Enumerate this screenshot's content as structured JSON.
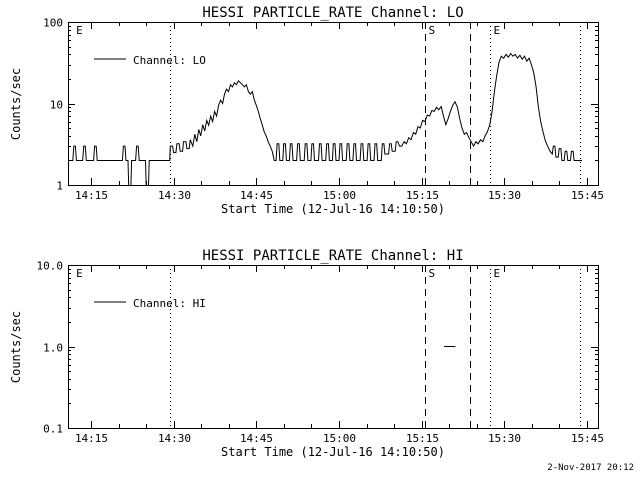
{
  "page": {
    "background": "#ffffff",
    "foreground": "#000000",
    "timestamp": "2-Nov-2017 20:12"
  },
  "chart_data": [
    {
      "type": "line",
      "title": "HESSI PARTICLE_RATE Channel: LO",
      "xlabel": "Start Time (12-Jul-16 14:10:50)",
      "ylabel": "Counts/sec",
      "legend": "Channel: LO",
      "legend_position": "top-left",
      "yscale": "log",
      "ylim": [
        1,
        100
      ],
      "yticks": [
        {
          "v": 1,
          "label": "1"
        },
        {
          "v": 10,
          "label": "10"
        },
        {
          "v": 100,
          "label": "100"
        }
      ],
      "x_unit": "decimal_hours",
      "xlim": [
        14.1806,
        15.7833
      ],
      "xticks": [
        {
          "v": 14.25,
          "label": "14:15"
        },
        {
          "v": 14.5,
          "label": "14:30"
        },
        {
          "v": 14.75,
          "label": "14:45"
        },
        {
          "v": 15.0,
          "label": "15:00"
        },
        {
          "v": 15.25,
          "label": "15:15"
        },
        {
          "v": 15.5,
          "label": "15:30"
        },
        {
          "v": 15.75,
          "label": "15:45"
        }
      ],
      "xminor": 0.0833333,
      "grid": false,
      "vlines": [
        {
          "x": 14.49,
          "style": "dotted"
        },
        {
          "x": 15.26,
          "style": "dashed",
          "label": "S"
        },
        {
          "x": 15.395,
          "style": "dashed"
        },
        {
          "x": 15.457,
          "style": "dotted",
          "label": "E"
        },
        {
          "x": 15.729,
          "style": "dotted"
        }
      ],
      "extra_labels": [
        {
          "x": 14.205,
          "text": "E"
        }
      ],
      "points": [
        [
          14.185,
          2
        ],
        [
          14.195,
          2
        ],
        [
          14.198,
          3
        ],
        [
          14.203,
          3
        ],
        [
          14.206,
          2
        ],
        [
          14.225,
          2
        ],
        [
          14.228,
          3
        ],
        [
          14.233,
          3
        ],
        [
          14.236,
          2
        ],
        [
          14.258,
          2
        ],
        [
          14.261,
          3
        ],
        [
          14.266,
          3
        ],
        [
          14.269,
          2
        ],
        [
          14.29,
          2
        ],
        [
          14.31,
          2
        ],
        [
          14.33,
          2
        ],
        [
          14.345,
          2
        ],
        [
          14.348,
          3
        ],
        [
          14.353,
          3
        ],
        [
          14.356,
          2
        ],
        [
          14.362,
          2
        ],
        [
          14.365,
          0.7
        ],
        [
          14.37,
          0.7
        ],
        [
          14.373,
          2
        ],
        [
          14.385,
          2
        ],
        [
          14.388,
          3
        ],
        [
          14.393,
          3
        ],
        [
          14.396,
          2
        ],
        [
          14.415,
          2
        ],
        [
          14.418,
          0.7
        ],
        [
          14.423,
          0.7
        ],
        [
          14.426,
          2
        ],
        [
          14.44,
          2
        ],
        [
          14.47,
          2
        ],
        [
          14.488,
          2
        ],
        [
          14.49,
          3
        ],
        [
          14.497,
          3
        ],
        [
          14.5,
          2.5
        ],
        [
          14.507,
          2.5
        ],
        [
          14.51,
          3.2
        ],
        [
          14.517,
          3.2
        ],
        [
          14.52,
          2.6
        ],
        [
          14.527,
          2.6
        ],
        [
          14.53,
          3.4
        ],
        [
          14.537,
          3.4
        ],
        [
          14.54,
          2.8
        ],
        [
          14.547,
          2.8
        ],
        [
          14.55,
          3.6
        ],
        [
          14.558,
          3.0
        ],
        [
          14.564,
          4.2
        ],
        [
          14.57,
          3.4
        ],
        [
          14.576,
          4.8
        ],
        [
          14.582,
          4.0
        ],
        [
          14.588,
          5.5
        ],
        [
          14.594,
          4.6
        ],
        [
          14.6,
          6.2
        ],
        [
          14.606,
          5.4
        ],
        [
          14.612,
          7.0
        ],
        [
          14.618,
          6.0
        ],
        [
          14.624,
          8.0
        ],
        [
          14.63,
          7.0
        ],
        [
          14.636,
          9.5
        ],
        [
          14.642,
          11
        ],
        [
          14.648,
          10
        ],
        [
          14.654,
          13
        ],
        [
          14.66,
          15
        ],
        [
          14.666,
          14
        ],
        [
          14.672,
          17
        ],
        [
          14.678,
          16
        ],
        [
          14.684,
          18
        ],
        [
          14.69,
          17
        ],
        [
          14.696,
          19
        ],
        [
          14.702,
          18
        ],
        [
          14.708,
          17
        ],
        [
          14.714,
          16
        ],
        [
          14.72,
          17
        ],
        [
          14.726,
          14
        ],
        [
          14.732,
          13
        ],
        [
          14.738,
          14
        ],
        [
          14.744,
          11
        ],
        [
          14.75,
          9.5
        ],
        [
          14.756,
          8
        ],
        [
          14.762,
          6.5
        ],
        [
          14.768,
          5.5
        ],
        [
          14.774,
          4.5
        ],
        [
          14.78,
          4.0
        ],
        [
          14.786,
          3.4
        ],
        [
          14.792,
          3.0
        ],
        [
          14.798,
          2.6
        ],
        [
          14.804,
          2
        ],
        [
          14.81,
          2
        ],
        [
          14.813,
          3.2
        ],
        [
          14.818,
          3.2
        ],
        [
          14.821,
          2
        ],
        [
          14.83,
          2
        ],
        [
          14.833,
          3.2
        ],
        [
          14.838,
          3.2
        ],
        [
          14.841,
          2
        ],
        [
          14.85,
          2
        ],
        [
          14.853,
          3.2
        ],
        [
          14.858,
          3.2
        ],
        [
          14.861,
          2
        ],
        [
          14.872,
          2
        ],
        [
          14.875,
          3.2
        ],
        [
          14.88,
          3.2
        ],
        [
          14.883,
          2
        ],
        [
          14.895,
          2
        ],
        [
          14.898,
          3.2
        ],
        [
          14.903,
          3.2
        ],
        [
          14.906,
          2
        ],
        [
          14.915,
          2
        ],
        [
          14.918,
          3.2
        ],
        [
          14.923,
          3.2
        ],
        [
          14.926,
          2
        ],
        [
          14.938,
          2
        ],
        [
          14.941,
          3.2
        ],
        [
          14.946,
          3.2
        ],
        [
          14.949,
          2
        ],
        [
          14.96,
          2
        ],
        [
          14.963,
          3.2
        ],
        [
          14.968,
          3.2
        ],
        [
          14.971,
          2
        ],
        [
          14.98,
          2
        ],
        [
          14.983,
          3.2
        ],
        [
          14.988,
          3.2
        ],
        [
          14.991,
          2
        ],
        [
          15.0,
          2
        ],
        [
          15.003,
          3.2
        ],
        [
          15.008,
          3.2
        ],
        [
          15.011,
          2
        ],
        [
          15.022,
          2
        ],
        [
          15.025,
          3.2
        ],
        [
          15.03,
          3.2
        ],
        [
          15.033,
          2
        ],
        [
          15.042,
          2
        ],
        [
          15.045,
          3.2
        ],
        [
          15.05,
          3.2
        ],
        [
          15.053,
          2
        ],
        [
          15.064,
          2
        ],
        [
          15.067,
          3.2
        ],
        [
          15.072,
          3.2
        ],
        [
          15.075,
          2
        ],
        [
          15.085,
          2
        ],
        [
          15.088,
          3.2
        ],
        [
          15.093,
          3.2
        ],
        [
          15.096,
          2
        ],
        [
          15.106,
          2
        ],
        [
          15.109,
          3.2
        ],
        [
          15.114,
          3.2
        ],
        [
          15.117,
          2
        ],
        [
          15.128,
          2
        ],
        [
          15.131,
          3.2
        ],
        [
          15.136,
          3.2
        ],
        [
          15.139,
          2.4
        ],
        [
          15.15,
          2.4
        ],
        [
          15.153,
          3.2
        ],
        [
          15.158,
          3.2
        ],
        [
          15.161,
          2.6
        ],
        [
          15.17,
          2.6
        ],
        [
          15.173,
          3.4
        ],
        [
          15.178,
          3.4
        ],
        [
          15.183,
          3.0
        ],
        [
          15.19,
          3.0
        ],
        [
          15.197,
          3.4
        ],
        [
          15.204,
          3.2
        ],
        [
          15.211,
          3.8
        ],
        [
          15.218,
          3.6
        ],
        [
          15.225,
          4.4
        ],
        [
          15.232,
          4.2
        ],
        [
          15.239,
          5.2
        ],
        [
          15.246,
          5.0
        ],
        [
          15.253,
          6.2
        ],
        [
          15.26,
          6.0
        ],
        [
          15.267,
          7.2
        ],
        [
          15.274,
          7.0
        ],
        [
          15.281,
          8.2
        ],
        [
          15.288,
          8.0
        ],
        [
          15.295,
          9.0
        ],
        [
          15.302,
          8.4
        ],
        [
          15.309,
          9.2
        ],
        [
          15.316,
          7.0
        ],
        [
          15.323,
          5.5
        ],
        [
          15.33,
          6.5
        ],
        [
          15.337,
          8.0
        ],
        [
          15.344,
          9.5
        ],
        [
          15.351,
          10.5
        ],
        [
          15.358,
          9.0
        ],
        [
          15.365,
          6.5
        ],
        [
          15.372,
          5.0
        ],
        [
          15.379,
          4.2
        ],
        [
          15.386,
          4.4
        ],
        [
          15.393,
          3.8
        ],
        [
          15.4,
          3.4
        ],
        [
          15.407,
          3.0
        ],
        [
          15.414,
          3.4
        ],
        [
          15.421,
          3.2
        ],
        [
          15.428,
          3.6
        ],
        [
          15.435,
          3.4
        ],
        [
          15.442,
          4.0
        ],
        [
          15.449,
          4.5
        ],
        [
          15.456,
          5.5
        ],
        [
          15.463,
          8.0
        ],
        [
          15.47,
          14
        ],
        [
          15.477,
          22
        ],
        [
          15.484,
          32
        ],
        [
          15.491,
          38
        ],
        [
          15.498,
          36
        ],
        [
          15.505,
          40
        ],
        [
          15.512,
          37
        ],
        [
          15.519,
          41
        ],
        [
          15.526,
          38
        ],
        [
          15.533,
          40
        ],
        [
          15.54,
          36
        ],
        [
          15.547,
          39
        ],
        [
          15.554,
          35
        ],
        [
          15.561,
          38
        ],
        [
          15.568,
          33
        ],
        [
          15.575,
          36
        ],
        [
          15.582,
          30
        ],
        [
          15.589,
          24
        ],
        [
          15.596,
          16
        ],
        [
          15.603,
          9
        ],
        [
          15.61,
          6
        ],
        [
          15.617,
          4.5
        ],
        [
          15.624,
          3.5
        ],
        [
          15.631,
          3.0
        ],
        [
          15.638,
          2.6
        ],
        [
          15.645,
          2.4
        ],
        [
          15.648,
          3.0
        ],
        [
          15.653,
          3.0
        ],
        [
          15.656,
          2.2
        ],
        [
          15.663,
          2.2
        ],
        [
          15.666,
          2.8
        ],
        [
          15.671,
          2.8
        ],
        [
          15.674,
          2.0
        ],
        [
          15.681,
          2.0
        ],
        [
          15.684,
          2.6
        ],
        [
          15.689,
          2.6
        ],
        [
          15.692,
          2.0
        ],
        [
          15.7,
          2.0
        ],
        [
          15.703,
          2.6
        ],
        [
          15.708,
          2.6
        ],
        [
          15.711,
          2.0
        ],
        [
          15.72,
          2.0
        ],
        [
          15.729,
          2.0
        ],
        [
          15.735,
          2.0
        ]
      ]
    },
    {
      "type": "line",
      "title": "HESSI PARTICLE_RATE Channel: HI",
      "xlabel": "Start Time (12-Jul-16 14:10:50)",
      "ylabel": "Counts/sec",
      "legend": "Channel: HI",
      "legend_position": "top-left",
      "yscale": "log",
      "ylim": [
        0.1,
        10
      ],
      "yticks": [
        {
          "v": 0.1,
          "label": "0.1"
        },
        {
          "v": 1,
          "label": "1.0"
        },
        {
          "v": 10,
          "label": "10.0"
        }
      ],
      "x_unit": "decimal_hours",
      "xlim": [
        14.1806,
        15.7833
      ],
      "xticks": [
        {
          "v": 14.25,
          "label": "14:15"
        },
        {
          "v": 14.5,
          "label": "14:30"
        },
        {
          "v": 14.75,
          "label": "14:45"
        },
        {
          "v": 15.0,
          "label": "15:00"
        },
        {
          "v": 15.25,
          "label": "15:15"
        },
        {
          "v": 15.5,
          "label": "15:30"
        },
        {
          "v": 15.75,
          "label": "15:45"
        }
      ],
      "xminor": 0.0833333,
      "grid": false,
      "vlines": [
        {
          "x": 14.49,
          "style": "dotted"
        },
        {
          "x": 15.26,
          "style": "dashed",
          "label": "S"
        },
        {
          "x": 15.395,
          "style": "dashed"
        },
        {
          "x": 15.457,
          "style": "dotted",
          "label": "E"
        },
        {
          "x": 15.729,
          "style": "dotted"
        }
      ],
      "extra_labels": [
        {
          "x": 14.205,
          "text": "E"
        }
      ],
      "points": [
        [
          15.318,
          1.0
        ],
        [
          15.352,
          1.0
        ]
      ]
    }
  ]
}
